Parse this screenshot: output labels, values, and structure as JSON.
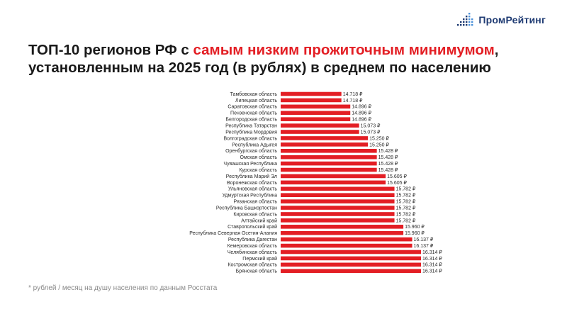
{
  "brand": {
    "name": "ПромРейтинг"
  },
  "title": {
    "part1": "ТОП-10 регионов РФ с ",
    "highlight": "самым низким прожиточным минимумом",
    "part2": ", установленным на 2025 год (в рублях) в среднем по населению"
  },
  "footnote": "* рублей / месяц на душу населения по данным Росстата",
  "colors": {
    "bar": "#e31e24",
    "brand": "#1f3b73",
    "highlight": "#e31e24"
  },
  "chart_data": {
    "type": "bar",
    "orientation": "horizontal",
    "categories": [
      "Тамбовская область",
      "Липецкая область",
      "Саратовская область",
      "Пензенская область",
      "Белгородская область",
      "Республика Татарстан",
      "Республика Мордовия",
      "Волгоградская область",
      "Республика Адыгея",
      "Оренбургская область",
      "Омская область",
      "Чувашская Республика",
      "Курская область",
      "Республика Марий Эл",
      "Воронежская область",
      "Ульяновская область",
      "Удмуртская Республика",
      "Рязанская область",
      "Республика Башкортостан",
      "Кировская область",
      "Алтайский край",
      "Ставропольский край",
      "Республика Северная Осетия-Алания",
      "Республика Дагестан",
      "Кемеровская область",
      "Челябинская область",
      "Пермский край",
      "Костромская область",
      "Брянская область"
    ],
    "values": [
      14718,
      14718,
      14896,
      14896,
      14896,
      15073,
      15073,
      15250,
      15250,
      15428,
      15428,
      15428,
      15428,
      15605,
      15605,
      15782,
      15782,
      15782,
      15782,
      15782,
      15782,
      15960,
      15960,
      16137,
      16137,
      16314,
      16314,
      16314,
      16314
    ],
    "labels": [
      "14.718 ₽",
      "14.718 ₽",
      "14.896 ₽",
      "14.896 ₽",
      "14.896 ₽",
      "15.073 ₽",
      "15.073 ₽",
      "15.250 ₽",
      "15.250 ₽",
      "15.428 ₽",
      "15.428 ₽",
      "15.428 ₽",
      "15.428 ₽",
      "15.605 ₽",
      "15.605 ₽",
      "15.782 ₽",
      "15.782 ₽",
      "15.782 ₽",
      "15.782 ₽",
      "15.782 ₽",
      "15.782 ₽",
      "15.960 ₽",
      "15.960 ₽",
      "16.137 ₽",
      "16.137 ₽",
      "16.314 ₽",
      "16.314 ₽",
      "16.314 ₽",
      "16.314 ₽"
    ],
    "title": "",
    "xlabel": "",
    "ylabel": "",
    "grid": false,
    "legend": "none"
  }
}
